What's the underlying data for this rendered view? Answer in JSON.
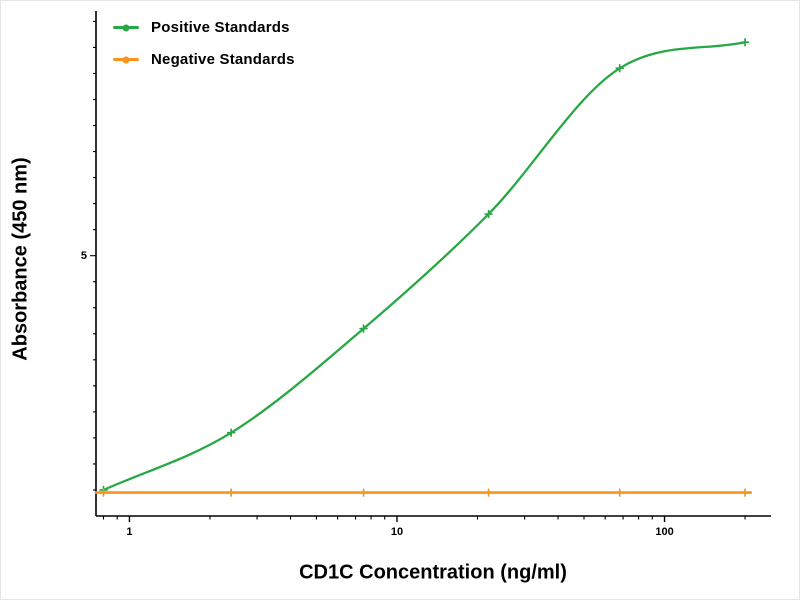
{
  "chart_data": {
    "type": "line",
    "title": "",
    "xlabel": "CD1C Concentration (ng/ml)",
    "ylabel": "Absorbance (450 nm)",
    "x_scale": "log",
    "xlim": [
      0.75,
      250
    ],
    "ylim": [
      0,
      9.7
    ],
    "grid": false,
    "legend_position": "top-left",
    "x_ticks_major": [
      1,
      10,
      100
    ],
    "x_tick_labels": [
      "1",
      "10",
      "100"
    ],
    "x_ticks_minor": [
      0.8,
      0.9,
      2,
      3,
      4,
      5,
      6,
      7,
      8,
      9,
      20,
      30,
      40,
      50,
      60,
      70,
      80,
      90,
      200
    ],
    "y_ticks_labeled": [
      {
        "value": 5,
        "label": "5"
      }
    ],
    "y_tick_minor_step": 0.5,
    "x": [
      0.8,
      2.4,
      7.5,
      22,
      68,
      200
    ],
    "series": [
      {
        "name": "Positive Standards",
        "color": "#28a745",
        "smooth": true,
        "values": [
          0.5,
          1.6,
          3.6,
          5.8,
          8.6,
          9.1
        ]
      },
      {
        "name": "Negative Standards",
        "color": "#f7941d",
        "smooth": false,
        "x_line": [
          0.75,
          210
        ],
        "values": [
          0.45,
          0.45,
          0.45,
          0.45,
          0.45,
          0.45
        ]
      }
    ],
    "axis_color": "#000000"
  }
}
